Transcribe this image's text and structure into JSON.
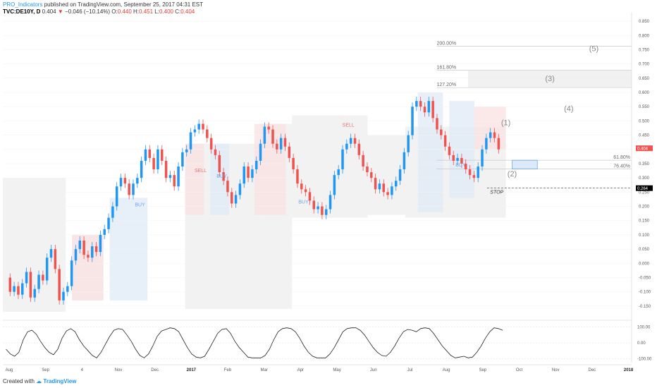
{
  "header": {
    "author": "PRO_Indicators",
    "published_text": " published on TradingView.com, September 25, 2017 04:31 EST",
    "symbol": "TVC:DE10Y, D",
    "last": "0.404",
    "change_arrow": "▼",
    "change": "−0.046 (−10.14%)",
    "o_label": "O:",
    "o_value": "0.440",
    "h_label": "H:",
    "h_value": "0.451",
    "l_label": "L:",
    "l_value": "0.400",
    "c_label": "C:",
    "c_value": "0.404"
  },
  "footer": {
    "created_with": "Created with",
    "logo_text": "TradingView"
  },
  "colors": {
    "up": "#2196f3",
    "down": "#ef5350",
    "buy_zone": "#dfeaf7",
    "sell_zone": "#f9e1e1",
    "neutral_zone": "#eeeeee",
    "price_badge": "#ef5350",
    "stop_badge": "#000000"
  },
  "chart_data": {
    "type": "candlestick",
    "symbol": "TVC:DE10Y",
    "interval": "D",
    "y_axis": {
      "ticks": [
        "0.850",
        "0.800",
        "0.750",
        "0.700",
        "0.650",
        "0.600",
        "0.550",
        "0.500",
        "0.450",
        "0.400",
        "0.350",
        "0.300",
        "0.250",
        "0.200",
        "0.150",
        "0.100",
        "0.050",
        "0.000",
        "-0.050",
        "-0.100",
        "-0.150"
      ],
      "ylim": [
        -0.18,
        0.87
      ]
    },
    "x_axis": {
      "ticks": [
        {
          "label": "Aug",
          "bold": false
        },
        {
          "label": "Sep",
          "bold": false
        },
        {
          "label": "4",
          "bold": false
        },
        {
          "label": "Nov",
          "bold": false
        },
        {
          "label": "Dec",
          "bold": false
        },
        {
          "label": "2017",
          "bold": true
        },
        {
          "label": "Feb",
          "bold": false
        },
        {
          "label": "Mar",
          "bold": false
        },
        {
          "label": "Apr",
          "bold": false
        },
        {
          "label": "May",
          "bold": false
        },
        {
          "label": "Jun",
          "bold": false
        },
        {
          "label": "Jul",
          "bold": false
        },
        {
          "label": "Aug",
          "bold": false
        },
        {
          "label": "Sep",
          "bold": false
        },
        {
          "label": "Oct",
          "bold": false
        },
        {
          "label": "Nov",
          "bold": false
        },
        {
          "label": "Dec",
          "bold": false
        },
        {
          "label": "2018",
          "bold": true
        }
      ]
    },
    "price_path": [
      -0.05,
      -0.1,
      -0.08,
      -0.11,
      -0.07,
      -0.03,
      -0.12,
      -0.09,
      -0.04,
      -0.06,
      0.02,
      0.05,
      -0.02,
      -0.13,
      -0.1,
      -0.08,
      0.01,
      0.05,
      0.08,
      0.03,
      0.02,
      0.06,
      0.04,
      0.1,
      0.12,
      0.16,
      0.2,
      0.27,
      0.3,
      0.28,
      0.24,
      0.28,
      0.3,
      0.36,
      0.4,
      0.37,
      0.33,
      0.4,
      0.36,
      0.3,
      0.31,
      0.27,
      0.34,
      0.39,
      0.4,
      0.46,
      0.47,
      0.49,
      0.47,
      0.44,
      0.4,
      0.38,
      0.32,
      0.29,
      0.25,
      0.21,
      0.24,
      0.28,
      0.34,
      0.3,
      0.33,
      0.36,
      0.42,
      0.48,
      0.47,
      0.42,
      0.4,
      0.44,
      0.41,
      0.37,
      0.33,
      0.28,
      0.26,
      0.25,
      0.22,
      0.19,
      0.2,
      0.17,
      0.19,
      0.24,
      0.31,
      0.33,
      0.4,
      0.42,
      0.44,
      0.42,
      0.38,
      0.34,
      0.32,
      0.3,
      0.26,
      0.28,
      0.25,
      0.24,
      0.27,
      0.29,
      0.33,
      0.39,
      0.45,
      0.55,
      0.57,
      0.55,
      0.53,
      0.57,
      0.51,
      0.47,
      0.45,
      0.41,
      0.38,
      0.36,
      0.37,
      0.35,
      0.33,
      0.31,
      0.3,
      0.34,
      0.4,
      0.44,
      0.46,
      0.44,
      0.4
    ],
    "zones": [
      {
        "kind": "neutral",
        "x0": 0.0,
        "x1": 0.1,
        "y0": -0.17,
        "y1": 0.3
      },
      {
        "kind": "neutral",
        "x0": 0.11,
        "x1": 0.16,
        "y0": -0.13,
        "y1": 0.1
      },
      {
        "kind": "sell",
        "x0": 0.11,
        "x1": 0.16,
        "y0": -0.13,
        "y1": 0.1
      },
      {
        "kind": "buy",
        "x0": 0.17,
        "x1": 0.23,
        "y0": -0.13,
        "y1": 0.23
      },
      {
        "kind": "neutral",
        "x0": 0.29,
        "x1": 0.41,
        "y0": -0.16,
        "y1": 0.42
      },
      {
        "kind": "sell",
        "x0": 0.29,
        "x1": 0.32,
        "y0": 0.17,
        "y1": 0.42
      },
      {
        "kind": "buy",
        "x0": 0.33,
        "x1": 0.36,
        "y0": 0.17,
        "y1": 0.42
      },
      {
        "kind": "neutral",
        "x0": 0.41,
        "x1": 0.46,
        "y0": -0.16,
        "y1": 0.49
      },
      {
        "kind": "sell",
        "x0": 0.4,
        "x1": 0.45,
        "y0": 0.17,
        "y1": 0.49
      },
      {
        "kind": "neutral",
        "x0": 0.46,
        "x1": 0.58,
        "y0": 0.16,
        "y1": 0.52
      },
      {
        "kind": "neutral",
        "x0": 0.58,
        "x1": 0.64,
        "y0": 0.17,
        "y1": 0.45
      },
      {
        "kind": "neutral",
        "x0": 0.64,
        "x1": 0.8,
        "y0": 0.16,
        "y1": 0.48
      },
      {
        "kind": "buy",
        "x0": 0.66,
        "x1": 0.7,
        "y0": 0.18,
        "y1": 0.6
      },
      {
        "kind": "buy",
        "x0": 0.71,
        "x1": 0.75,
        "y0": 0.23,
        "y1": 0.57
      },
      {
        "kind": "sell",
        "x0": 0.75,
        "x1": 0.8,
        "y0": 0.4,
        "y1": 0.55
      }
    ],
    "signals": [
      {
        "text": "SELL",
        "kind": "sell",
        "x": 0.305,
        "y": 0.32
      },
      {
        "text": "BUY",
        "kind": "buy",
        "x": 0.21,
        "y": 0.2
      },
      {
        "text": "BUY",
        "kind": "buy",
        "x": 0.34,
        "y": 0.3
      },
      {
        "text": "SELL",
        "kind": "sell",
        "x": 0.54,
        "y": 0.48
      },
      {
        "text": "BUY",
        "kind": "buy",
        "x": 0.47,
        "y": 0.21
      },
      {
        "text": "BUY",
        "kind": "buy",
        "x": 0.72,
        "y": 0.34
      }
    ],
    "fib_levels": [
      {
        "label": "200.00%",
        "value": 0.762
      },
      {
        "label": "161.80%",
        "value": 0.678
      },
      {
        "label": "127.20%",
        "value": 0.617
      },
      {
        "label": "61.80%",
        "value": 0.362
      },
      {
        "label": "76.40%",
        "value": 0.331
      }
    ],
    "waves": [
      {
        "label": "(1)",
        "x": 0.8,
        "y": 0.485
      },
      {
        "label": "(2)",
        "x": 0.81,
        "y": 0.305
      },
      {
        "label": "(3)",
        "x": 0.87,
        "y": 0.64
      },
      {
        "label": "(4)",
        "x": 0.9,
        "y": 0.535
      },
      {
        "label": "(5)",
        "x": 0.94,
        "y": 0.745
      }
    ],
    "stop": {
      "label": "STOP",
      "value": 0.264
    },
    "last_price_badge": "0.404",
    "stop_badge": "0.264",
    "oscillator": {
      "ticks": [
        "100.00",
        "0.00",
        "-100.00"
      ],
      "ylim": [
        -125,
        125
      ],
      "values": [
        -40,
        -70,
        -85,
        -60,
        20,
        70,
        80,
        55,
        10,
        -30,
        -60,
        -75,
        -40,
        30,
        75,
        90,
        70,
        20,
        -20,
        -50,
        -80,
        -95,
        -60,
        -10,
        40,
        80,
        90,
        85,
        50,
        10,
        -40,
        -80,
        -95,
        -70,
        -20,
        40,
        75,
        85,
        95,
        90,
        70,
        20,
        -30,
        -70,
        -90,
        -95,
        -85,
        -40,
        10,
        60,
        85,
        90,
        60,
        10,
        -30,
        -60,
        -90,
        -95,
        -95,
        -95,
        -80,
        -40,
        20,
        70,
        90,
        95,
        90,
        70,
        30,
        -20,
        -60,
        -85,
        -95,
        -95,
        -95,
        -70,
        -30,
        20,
        70,
        90,
        95,
        95,
        80,
        50,
        10,
        -30,
        -60,
        -80,
        -85,
        -60,
        -20,
        30,
        70,
        85,
        80,
        70,
        90,
        95,
        90,
        60,
        20,
        -20,
        -50,
        -80,
        -95,
        -90,
        -85,
        -95,
        -90,
        -60,
        -20,
        30,
        70,
        95,
        90,
        80
      ]
    }
  }
}
